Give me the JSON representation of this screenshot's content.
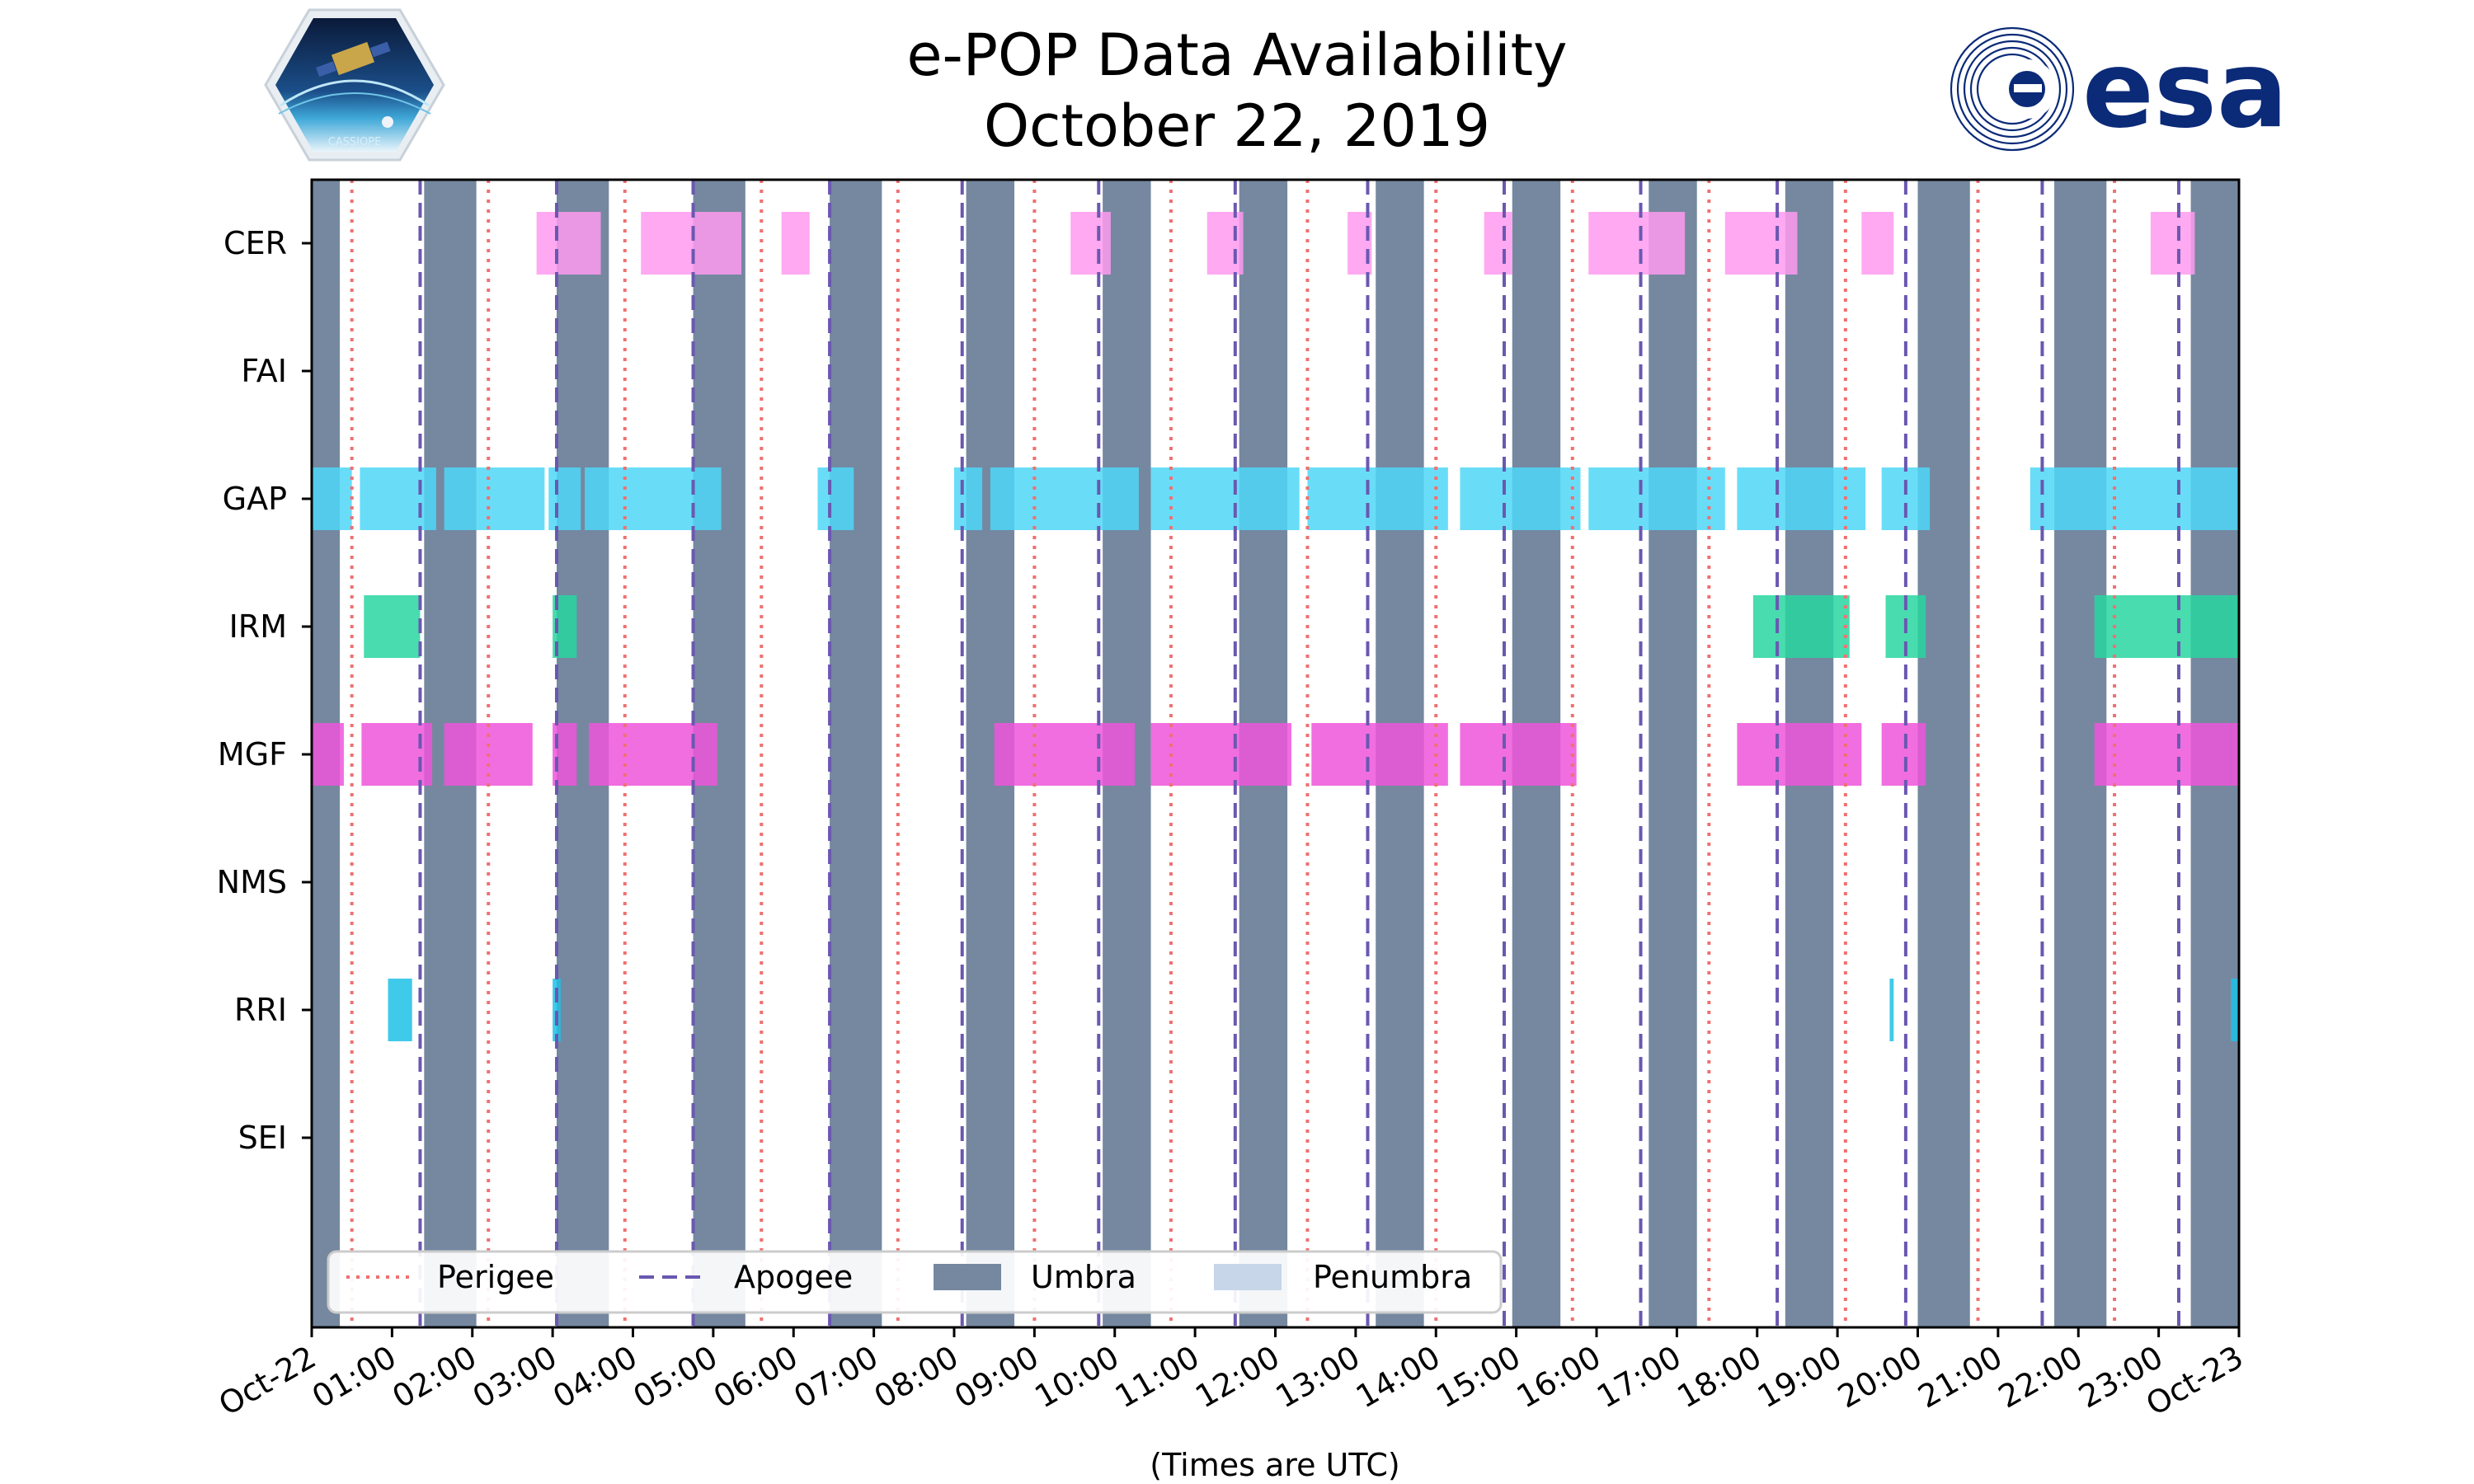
{
  "header": {
    "title_line1": "e-POP Data Availability",
    "title_line2": "October 22, 2019",
    "logo_left_text": "CASSIOPE",
    "logo_right_text": "esa"
  },
  "chart_data": {
    "type": "timeline",
    "title": "e-POP Data Availability October 22, 2019",
    "xlabel": "(Times are UTC)",
    "x_range_hours": [
      0,
      24
    ],
    "x_tick_labels": [
      "Oct-22",
      "01:00",
      "02:00",
      "03:00",
      "04:00",
      "05:00",
      "06:00",
      "07:00",
      "08:00",
      "09:00",
      "10:00",
      "11:00",
      "12:00",
      "13:00",
      "14:00",
      "15:00",
      "16:00",
      "17:00",
      "18:00",
      "19:00",
      "20:00",
      "21:00",
      "22:00",
      "23:00",
      "Oct-23"
    ],
    "instruments": [
      "CER",
      "FAI",
      "GAP",
      "IRM",
      "MGF",
      "NMS",
      "RRI",
      "SEI"
    ],
    "colors": {
      "CER": "#ff9af0",
      "GAP": "#4fd7f7",
      "IRM": "#28d6a0",
      "MGF": "#ee55da",
      "RRI": "#1fc1e6",
      "umbra": "#7588a0",
      "penumbra": "#c7d6e8",
      "perigee": "#f07070",
      "apogee": "#6a58b0"
    },
    "umbra": [
      [
        0,
        0.35
      ],
      [
        1.4,
        2.05
      ],
      [
        3.05,
        3.7
      ],
      [
        4.75,
        5.4
      ],
      [
        6.45,
        7.1
      ],
      [
        8.15,
        8.75
      ],
      [
        9.85,
        10.45
      ],
      [
        11.55,
        12.15
      ],
      [
        13.25,
        13.85
      ],
      [
        14.95,
        15.55
      ],
      [
        16.65,
        17.25
      ],
      [
        18.35,
        18.95
      ],
      [
        20.0,
        20.65
      ],
      [
        21.7,
        22.35
      ],
      [
        23.4,
        24.0
      ]
    ],
    "perigee": [
      0.5,
      2.2,
      3.9,
      5.6,
      7.3,
      9.0,
      10.7,
      12.4,
      14.0,
      15.7,
      17.4,
      19.1,
      20.75,
      22.45
    ],
    "apogee": [
      1.35,
      3.05,
      4.75,
      6.45,
      8.1,
      9.8,
      11.5,
      13.15,
      14.85,
      16.55,
      18.25,
      19.85,
      21.55,
      23.25
    ],
    "series": [
      {
        "name": "CER",
        "intervals": [
          [
            2.8,
            3.6
          ],
          [
            4.1,
            5.35
          ],
          [
            5.85,
            6.2
          ],
          [
            9.45,
            9.95
          ],
          [
            11.15,
            11.6
          ],
          [
            12.9,
            13.2
          ],
          [
            14.6,
            14.95
          ],
          [
            15.9,
            17.1
          ],
          [
            17.6,
            18.5
          ],
          [
            19.3,
            19.7
          ],
          [
            22.9,
            23.45
          ]
        ]
      },
      {
        "name": "FAI",
        "intervals": []
      },
      {
        "name": "GAP",
        "intervals": [
          [
            0,
            0.5
          ],
          [
            0.6,
            1.55
          ],
          [
            1.65,
            2.9
          ],
          [
            2.95,
            3.35
          ],
          [
            3.4,
            5.1
          ],
          [
            6.3,
            6.75
          ],
          [
            8.0,
            8.35
          ],
          [
            8.45,
            10.3
          ],
          [
            10.45,
            12.3
          ],
          [
            12.4,
            14.15
          ],
          [
            14.3,
            15.8
          ],
          [
            15.9,
            17.6
          ],
          [
            17.75,
            19.35
          ],
          [
            19.55,
            20.15
          ],
          [
            21.4,
            24.0
          ]
        ]
      },
      {
        "name": "IRM",
        "intervals": [
          [
            0.65,
            1.35
          ],
          [
            3.0,
            3.3
          ],
          [
            17.95,
            19.15
          ],
          [
            19.6,
            20.1
          ],
          [
            22.2,
            23.9
          ],
          [
            23.9,
            24.0
          ]
        ]
      },
      {
        "name": "MGF",
        "intervals": [
          [
            0,
            0.4
          ],
          [
            0.62,
            1.5
          ],
          [
            1.65,
            2.75
          ],
          [
            3.0,
            3.3
          ],
          [
            3.45,
            5.05
          ],
          [
            8.5,
            10.25
          ],
          [
            10.45,
            12.2
          ],
          [
            12.45,
            14.15
          ],
          [
            14.3,
            15.75
          ],
          [
            17.75,
            19.3
          ],
          [
            19.55,
            20.1
          ],
          [
            22.2,
            23.9
          ],
          [
            23.9,
            24.0
          ]
        ]
      },
      {
        "name": "NMS",
        "intervals": []
      },
      {
        "name": "RRI",
        "intervals": [
          [
            0.95,
            1.25
          ],
          [
            3.0,
            3.1
          ],
          [
            19.65,
            19.7
          ],
          [
            23.9,
            24.0
          ]
        ]
      },
      {
        "name": "SEI",
        "intervals": []
      }
    ],
    "legend": {
      "position": "bottom-left",
      "entries": [
        "Perigee",
        "Apogee",
        "Umbra",
        "Penumbra"
      ]
    }
  }
}
